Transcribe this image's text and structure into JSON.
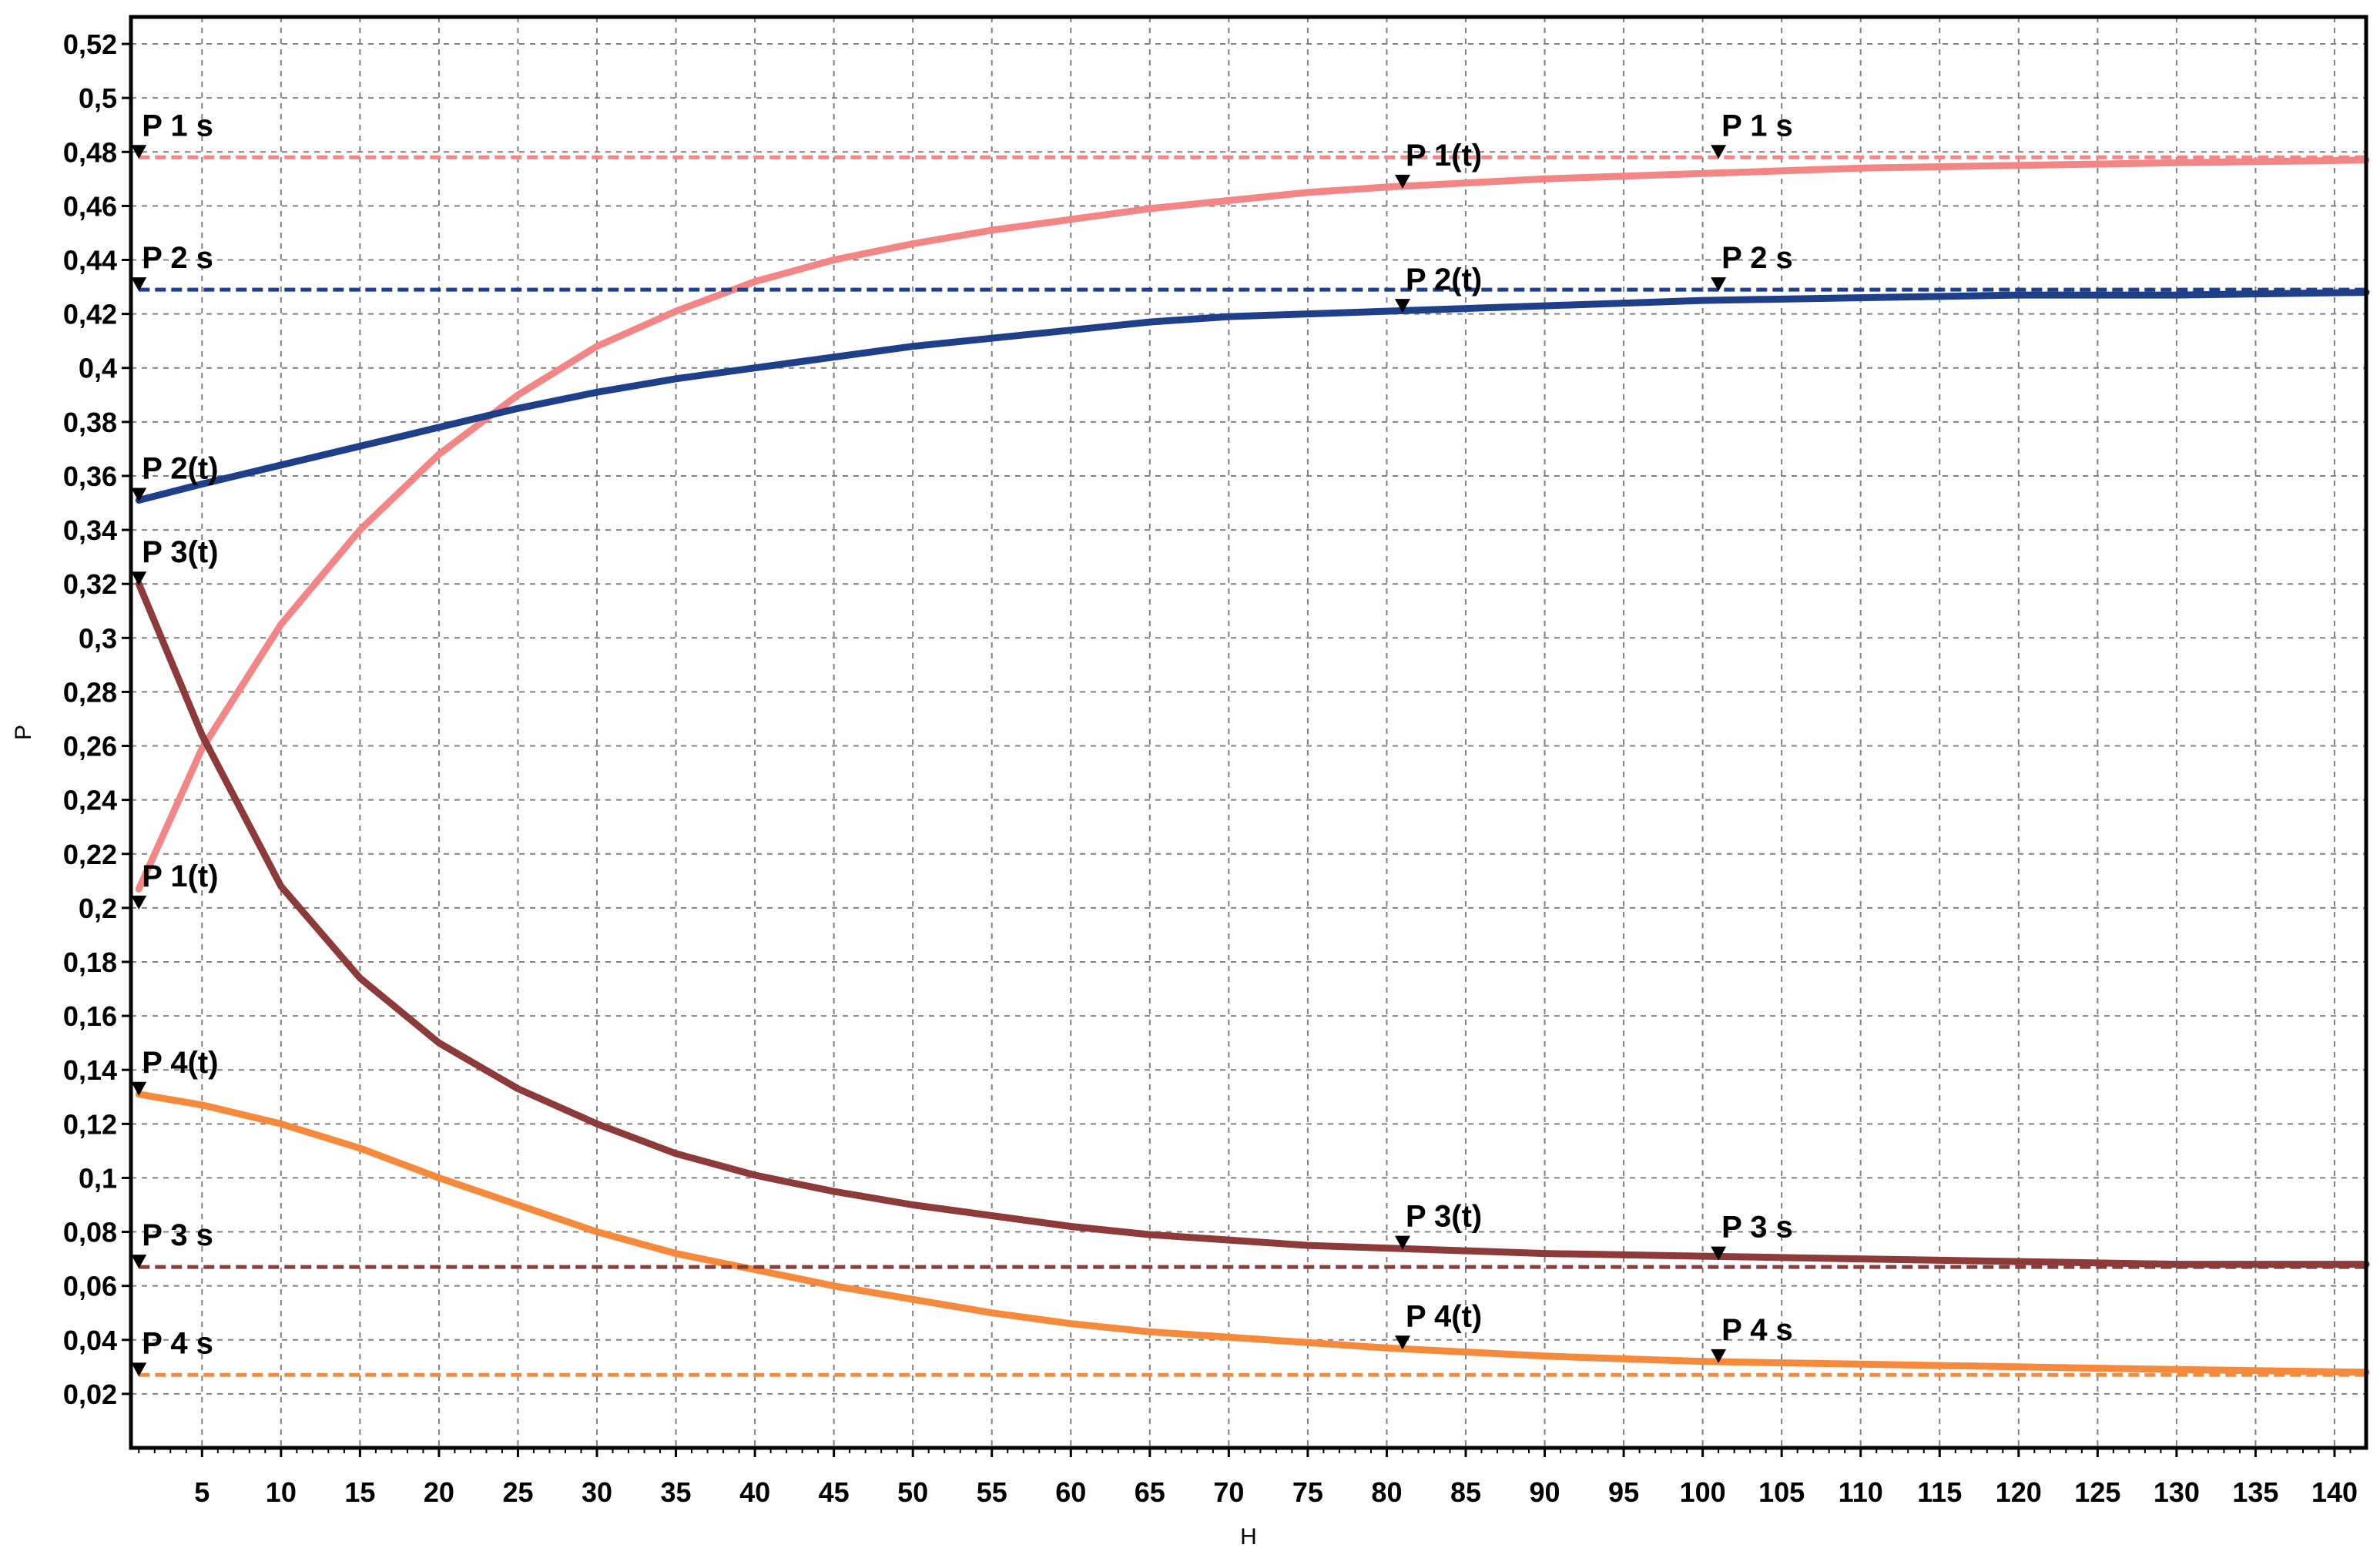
{
  "chart_data": {
    "type": "line",
    "xlabel": "H",
    "ylabel": "P",
    "xlim": [
      0.5,
      142
    ],
    "ylim": [
      0,
      0.53
    ],
    "grid": true,
    "x_ticks": [
      5,
      10,
      15,
      20,
      25,
      30,
      35,
      40,
      45,
      50,
      55,
      60,
      65,
      70,
      75,
      80,
      85,
      90,
      95,
      100,
      105,
      110,
      115,
      120,
      125,
      130,
      135,
      140
    ],
    "x_tick_labels": [
      "5",
      "10",
      "15",
      "20",
      "25",
      "30",
      "35",
      "40",
      "45",
      "50",
      "55",
      "60",
      "65",
      "70",
      "75",
      "80",
      "85",
      "90",
      "95",
      "100",
      "105",
      "110",
      "115",
      "120",
      "125",
      "130",
      "135",
      "140"
    ],
    "y_ticks": [
      0.02,
      0.04,
      0.06,
      0.08,
      0.1,
      0.12,
      0.14,
      0.16,
      0.18,
      0.2,
      0.22,
      0.24,
      0.26,
      0.28,
      0.3,
      0.32,
      0.34,
      0.36,
      0.38,
      0.4,
      0.42,
      0.44,
      0.46,
      0.48,
      0.5,
      0.52
    ],
    "y_tick_labels": [
      "0,02",
      "0,04",
      "0,06",
      "0,08",
      "0,1",
      "0,12",
      "0,14",
      "0,16",
      "0,18",
      "0,2",
      "0,22",
      "0,24",
      "0,26",
      "0,28",
      "0,3",
      "0,32",
      "0,34",
      "0,36",
      "0,38",
      "0,4",
      "0,42",
      "0,44",
      "0,46",
      "0,48",
      "0,5",
      "0,52"
    ],
    "series": [
      {
        "name": "P 1(t)",
        "color": "#f28585",
        "style": "solid",
        "x": [
          1,
          2,
          5,
          10,
          15,
          20,
          25,
          30,
          35,
          40,
          45,
          50,
          55,
          60,
          65,
          70,
          75,
          80,
          90,
          100,
          110,
          120,
          130,
          142
        ],
        "y": [
          0.207,
          0.22,
          0.259,
          0.305,
          0.34,
          0.368,
          0.39,
          0.408,
          0.421,
          0.432,
          0.44,
          0.446,
          0.451,
          0.455,
          0.459,
          0.462,
          0.465,
          0.467,
          0.47,
          0.472,
          0.474,
          0.475,
          0.476,
          0.477
        ]
      },
      {
        "name": "P 2(t)",
        "color": "#1f3f88",
        "style": "solid",
        "x": [
          1,
          5,
          10,
          15,
          20,
          25,
          30,
          35,
          40,
          45,
          50,
          55,
          60,
          65,
          70,
          75,
          80,
          90,
          100,
          110,
          120,
          130,
          142
        ],
        "y": [
          0.351,
          0.357,
          0.364,
          0.371,
          0.378,
          0.385,
          0.391,
          0.396,
          0.4,
          0.404,
          0.408,
          0.411,
          0.414,
          0.417,
          0.419,
          0.42,
          0.421,
          0.423,
          0.425,
          0.426,
          0.427,
          0.427,
          0.428
        ]
      },
      {
        "name": "P 3(t)",
        "color": "#8c3a3a",
        "style": "solid",
        "x": [
          1,
          5,
          10,
          15,
          20,
          25,
          30,
          35,
          40,
          45,
          50,
          55,
          60,
          65,
          70,
          75,
          80,
          90,
          100,
          110,
          120,
          130,
          142
        ],
        "y": [
          0.32,
          0.264,
          0.208,
          0.174,
          0.15,
          0.133,
          0.12,
          0.109,
          0.101,
          0.095,
          0.09,
          0.086,
          0.082,
          0.079,
          0.077,
          0.075,
          0.074,
          0.072,
          0.071,
          0.07,
          0.069,
          0.068,
          0.068
        ]
      },
      {
        "name": "P 4(t)",
        "color": "#f58a3c",
        "style": "solid",
        "x": [
          1,
          5,
          10,
          15,
          20,
          25,
          30,
          35,
          40,
          45,
          50,
          55,
          60,
          65,
          70,
          75,
          80,
          90,
          100,
          110,
          120,
          130,
          142
        ],
        "y": [
          0.131,
          0.127,
          0.12,
          0.111,
          0.1,
          0.09,
          0.08,
          0.072,
          0.066,
          0.06,
          0.055,
          0.05,
          0.046,
          0.043,
          0.041,
          0.039,
          0.037,
          0.034,
          0.032,
          0.031,
          0.03,
          0.029,
          0.028
        ]
      },
      {
        "name": "P 1 s",
        "color": "#f28585",
        "style": "dashed",
        "x": [
          1,
          142
        ],
        "y": [
          0.478,
          0.478
        ]
      },
      {
        "name": "P 2 s",
        "color": "#1f3f88",
        "style": "dashed",
        "x": [
          1,
          142
        ],
        "y": [
          0.429,
          0.429
        ]
      },
      {
        "name": "P 3 s",
        "color": "#8c3a3a",
        "style": "dashed",
        "x": [
          1,
          142
        ],
        "y": [
          0.067,
          0.067
        ]
      },
      {
        "name": "P 4 s",
        "color": "#f58a3c",
        "style": "dashed",
        "x": [
          1,
          142
        ],
        "y": [
          0.027,
          0.027
        ]
      }
    ],
    "markers": [
      {
        "label": "P 1 s",
        "x": 1,
        "y": 0.478
      },
      {
        "label": "P 2 s",
        "x": 1,
        "y": 0.429
      },
      {
        "label": "P 2(t)",
        "x": 1,
        "y": 0.351
      },
      {
        "label": "P 3(t)",
        "x": 1,
        "y": 0.32
      },
      {
        "label": "P 1(t)",
        "x": 1,
        "y": 0.2
      },
      {
        "label": "P 4(t)",
        "x": 1,
        "y": 0.131
      },
      {
        "label": "P 3 s",
        "x": 1,
        "y": 0.067
      },
      {
        "label": "P 4 s",
        "x": 1,
        "y": 0.027
      },
      {
        "label": "P 1(t)",
        "x": 81,
        "y": 0.467
      },
      {
        "label": "P 2(t)",
        "x": 81,
        "y": 0.421
      },
      {
        "label": "P 3(t)",
        "x": 81,
        "y": 0.074
      },
      {
        "label": "P 4(t)",
        "x": 81,
        "y": 0.037
      },
      {
        "label": "P 1 s",
        "x": 101,
        "y": 0.478
      },
      {
        "label": "P 2 s",
        "x": 101,
        "y": 0.429
      },
      {
        "label": "P 3 s",
        "x": 101,
        "y": 0.07
      },
      {
        "label": "P 4 s",
        "x": 101,
        "y": 0.032
      }
    ]
  }
}
